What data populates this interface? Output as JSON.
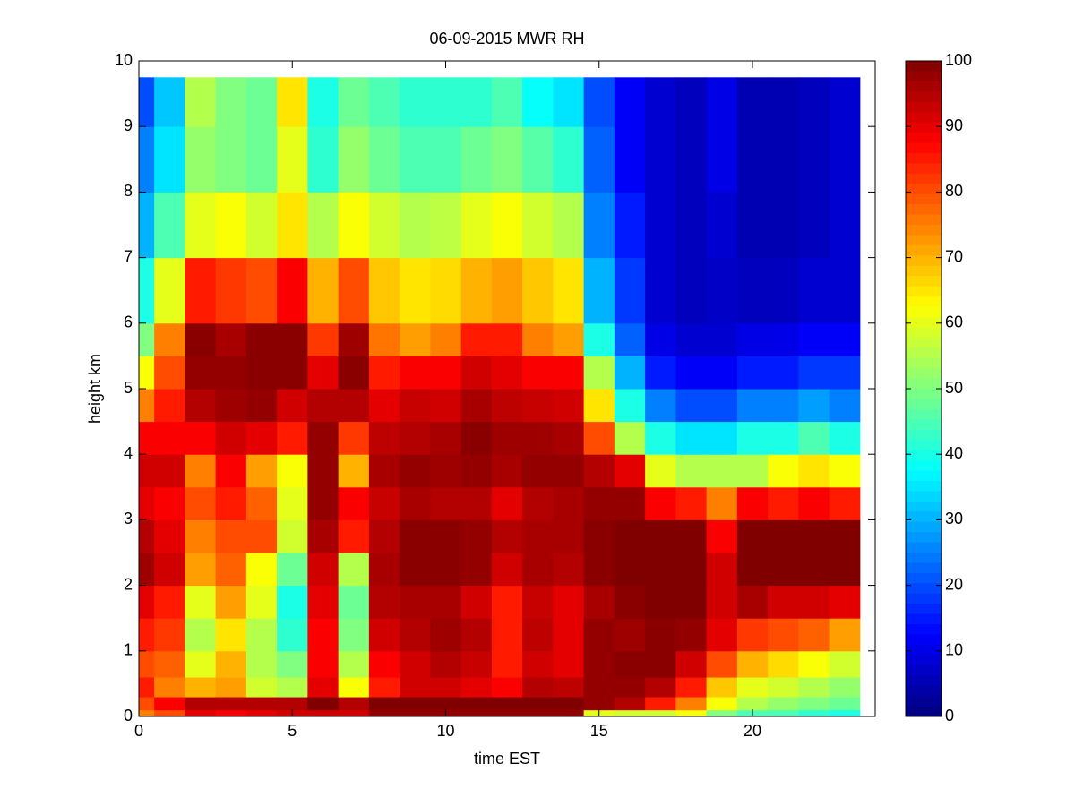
{
  "chart_data": {
    "type": "heatmap",
    "title": "06-09-2015 MWR RH",
    "xlabel": "time EST",
    "ylabel": "height km",
    "colormap": "jet",
    "x_bins": [
      0,
      0.5,
      1.5,
      2.5,
      3.5,
      4.5,
      5.5,
      6.5,
      7.5,
      8.5,
      9.5,
      10.5,
      11.5,
      12.5,
      13.5,
      14.5,
      15.5,
      16.5,
      17.5,
      18.5,
      19.5,
      20.5,
      21.5,
      22.5,
      23.5
    ],
    "y_bins": [
      0,
      0.1,
      0.3,
      0.6,
      1,
      1.5,
      2,
      2.5,
      3,
      3.5,
      4,
      4.5,
      5,
      5.5,
      6,
      7,
      8,
      9,
      9.75
    ],
    "values": [
      [
        75,
        80,
        85,
        80,
        85,
        90,
        97,
        95,
        90,
        92,
        88,
        75,
        62,
        50,
        40,
        30,
        25,
        20
      ],
      [
        80,
        88,
        75,
        78,
        82,
        85,
        92,
        90,
        88,
        92,
        88,
        85,
        80,
        75,
        60,
        45,
        35,
        32
      ],
      [
        90,
        95,
        70,
        60,
        55,
        60,
        72,
        75,
        80,
        75,
        88,
        95,
        98,
        99,
        85,
        60,
        52,
        55
      ],
      [
        88,
        95,
        72,
        70,
        65,
        72,
        78,
        80,
        85,
        88,
        92,
        97,
        98,
        96,
        82,
        62,
        50,
        50
      ],
      [
        90,
        95,
        58,
        55,
        55,
        60,
        62,
        80,
        78,
        72,
        90,
        98,
        99,
        99,
        80,
        58,
        48,
        48
      ],
      [
        92,
        95,
        55,
        50,
        42,
        40,
        48,
        58,
        60,
        62,
        85,
        92,
        99,
        99,
        88,
        65,
        60,
        65
      ],
      [
        92,
        100,
        90,
        88,
        88,
        90,
        92,
        96,
        98,
        98,
        98,
        95,
        90,
        82,
        70,
        55,
        42,
        40
      ],
      [
        92,
        95,
        62,
        55,
        50,
        48,
        55,
        85,
        88,
        70,
        82,
        95,
        99,
        97,
        80,
        62,
        52,
        48
      ],
      [
        98,
        100,
        85,
        88,
        92,
        95,
        96,
        95,
        93,
        96,
        94,
        90,
        85,
        76,
        68,
        58,
        48,
        45
      ],
      [
        98,
        100,
        92,
        92,
        95,
        96,
        99,
        99,
        96,
        98,
        95,
        93,
        88,
        72,
        65,
        55,
        45,
        42
      ],
      [
        98,
        100,
        92,
        95,
        97,
        96,
        99,
        99,
        95,
        97,
        96,
        92,
        88,
        75,
        66,
        56,
        45,
        42
      ],
      [
        98,
        100,
        90,
        93,
        95,
        92,
        98,
        98,
        95,
        98,
        99,
        96,
        92,
        85,
        70,
        60,
        48,
        42
      ],
      [
        98,
        100,
        88,
        85,
        85,
        85,
        92,
        95,
        90,
        96,
        97,
        94,
        90,
        85,
        72,
        62,
        50,
        45
      ],
      [
        98,
        100,
        95,
        92,
        94,
        93,
        96,
        96,
        95,
        98,
        97,
        93,
        88,
        75,
        68,
        58,
        46,
        38
      ],
      [
        98,
        100,
        94,
        90,
        90,
        90,
        95,
        96,
        96,
        98,
        96,
        92,
        88,
        72,
        65,
        55,
        42,
        35
      ],
      [
        60,
        98,
        98,
        98,
        98,
        96,
        99,
        99,
        98,
        95,
        80,
        65,
        55,
        40,
        30,
        25,
        22,
        20
      ],
      [
        58,
        95,
        98,
        99,
        97,
        99,
        100,
        100,
        98,
        90,
        55,
        40,
        30,
        22,
        18,
        15,
        12,
        12
      ],
      [
        58,
        85,
        95,
        99,
        99,
        100,
        100,
        100,
        88,
        60,
        40,
        25,
        15,
        10,
        8,
        8,
        8,
        8
      ],
      [
        62,
        75,
        85,
        92,
        98,
        100,
        100,
        100,
        85,
        55,
        35,
        20,
        12,
        8,
        6,
        6,
        6,
        6
      ],
      [
        50,
        62,
        68,
        80,
        90,
        92,
        92,
        88,
        75,
        55,
        35,
        20,
        12,
        8,
        7,
        8,
        10,
        10
      ],
      [
        45,
        55,
        60,
        70,
        82,
        96,
        100,
        100,
        88,
        55,
        40,
        25,
        15,
        10,
        6,
        5,
        5,
        5
      ],
      [
        45,
        52,
        58,
        66,
        80,
        92,
        100,
        100,
        85,
        62,
        40,
        25,
        15,
        10,
        6,
        5,
        5,
        5
      ],
      [
        42,
        50,
        55,
        62,
        78,
        92,
        100,
        100,
        88,
        65,
        45,
        28,
        18,
        12,
        8,
        6,
        6,
        6
      ],
      [
        40,
        48,
        52,
        58,
        72,
        90,
        100,
        100,
        85,
        62,
        40,
        25,
        18,
        12,
        8,
        8,
        8,
        8
      ]
    ],
    "xlim": [
      0,
      24
    ],
    "xticks": [
      0,
      5,
      10,
      15,
      20
    ],
    "ylim": [
      0,
      10
    ],
    "yticks": [
      0,
      1,
      2,
      3,
      4,
      5,
      6,
      7,
      8,
      9,
      10
    ],
    "clim": [
      0,
      100
    ],
    "cticks": [
      0,
      10,
      20,
      30,
      40,
      50,
      60,
      70,
      80,
      90,
      100
    ]
  }
}
